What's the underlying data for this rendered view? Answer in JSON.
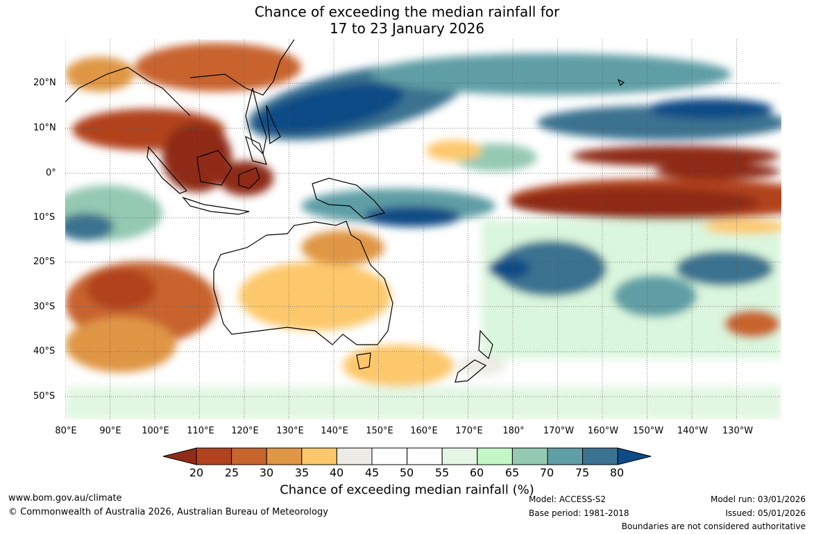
{
  "title_line1": "Chance of exceeding the median rainfall for",
  "title_line2": "17 to 23 January 2026",
  "lat_labels": [
    "20°N",
    "10°N",
    "0°",
    "10°S",
    "20°S",
    "30°S",
    "40°S",
    "50°S"
  ],
  "lon_labels": [
    "80°E",
    "90°E",
    "100°E",
    "110°E",
    "120°E",
    "130°E",
    "140°E",
    "150°E",
    "160°E",
    "170°E",
    "180°",
    "170°W",
    "160°W",
    "150°W",
    "140°W",
    "130°W"
  ],
  "legend": {
    "title": "Chance of exceeding median rainfall (%)",
    "ticks": [
      "20",
      "25",
      "30",
      "35",
      "40",
      "45",
      "50",
      "55",
      "60",
      "65",
      "70",
      "75",
      "80"
    ],
    "colors": [
      "#8e2c19",
      "#b1421f",
      "#c8642e",
      "#df9645",
      "#fdc86c",
      "#ecebe5",
      "#ffffff",
      "#ffffff",
      "#e6f6e6",
      "#c3f7c8",
      "#94c9b2",
      "#5f9ea5",
      "#3b7290",
      "#0f4b86"
    ]
  },
  "footer": {
    "website": "www.bom.gov.au/climate",
    "copyright": "© Commonwealth of Australia 2026, Australian Bureau of Meteorology",
    "model": "Model: ACCESS-S2",
    "base_period": "Base period: 1981-2018",
    "model_run": "Model run: 03/01/2026",
    "issued": "Issued: 05/01/2026",
    "disclaimer": "Boundaries are not considered authoritative"
  }
}
